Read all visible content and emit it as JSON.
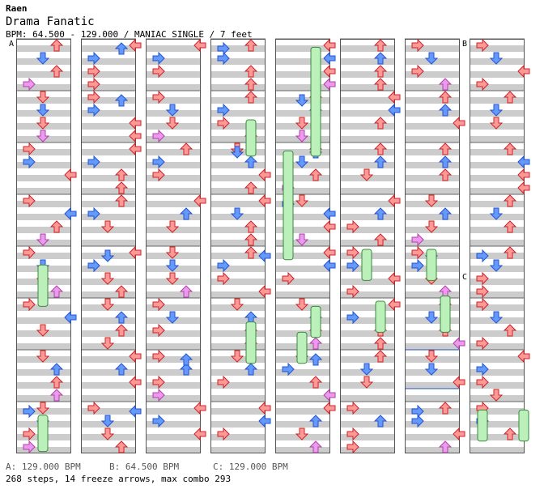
{
  "header": {
    "author": "Raen",
    "title": "Drama Fanatic",
    "info": "BPM: 64.500 - 129.000 / MANIAC SINGLE / 7 feet"
  },
  "markers": [
    {
      "label": "A",
      "column": 0,
      "beat": 0
    },
    {
      "label": "B",
      "column": 7,
      "beat": 0
    },
    {
      "label": "C",
      "column": 7,
      "beat": 4.5
    }
  ],
  "legend": [
    {
      "key": "A",
      "text": "A: 129.000 BPM"
    },
    {
      "key": "B",
      "text": "B: 64.500 BPM"
    },
    {
      "key": "C",
      "text": "C: 129.000 BPM"
    }
  ],
  "stats": "268 steps, 14 freeze arrows, max combo 293",
  "colors": {
    "quarter": "#ff9999",
    "eighth": "#6699ff",
    "sixteenth": "#ee99ee",
    "freeze": "#bbf0bb",
    "stripe": "#cccccc"
  },
  "chart_data": {
    "type": "other",
    "columns": 8,
    "measures_per_column": 8,
    "lanes": [
      "left",
      "down",
      "up",
      "right"
    ],
    "notes": [
      [
        0,
        0,
        0,
        0,
        0
      ],
      [
        1,
        0,
        1,
        3,
        4
      ],
      [
        1,
        0.25,
        1,
        3,
        4
      ],
      [
        1,
        0.5,
        0,
        0,
        4
      ],
      [
        1,
        0.75,
        0,
        0,
        4
      ],
      [
        2,
        0,
        3,
        1,
        16
      ],
      [
        2,
        0.25,
        3,
        1,
        16
      ],
      [
        2,
        0.5,
        0,
        2,
        16
      ],
      [
        2,
        0.75,
        2,
        2,
        16
      ],
      [
        3,
        0,
        3,
        3,
        8
      ],
      [
        3,
        0.25,
        3,
        1,
        8
      ],
      [
        3,
        0.5,
        1,
        0,
        4
      ],
      [
        3,
        0.75,
        2,
        0,
        4
      ],
      [
        4,
        0,
        0,
        3,
        4
      ],
      [
        4,
        0.25,
        2,
        3,
        4
      ],
      [
        4,
        0.5,
        1,
        2,
        4
      ],
      [
        4,
        0.75,
        2,
        1,
        4
      ],
      [
        5,
        0,
        2,
        3,
        4
      ],
      [
        5,
        0.25,
        1,
        0,
        4
      ],
      [
        5,
        0.5,
        0,
        1,
        8
      ],
      [
        5,
        0.75,
        0,
        0,
        4
      ],
      [
        6,
        0,
        0,
        3,
        4
      ],
      [
        6,
        0.25,
        2,
        1,
        4
      ],
      [
        6,
        0.5,
        3,
        2,
        4
      ],
      [
        6,
        0.75,
        3,
        0,
        4
      ],
      [
        7,
        0,
        2,
        0,
        4
      ],
      [
        7,
        0.25,
        1,
        1,
        8
      ],
      [
        7,
        0.5,
        3,
        2,
        4
      ],
      [
        7,
        0.75,
        1,
        3,
        4
      ]
    ]
  }
}
